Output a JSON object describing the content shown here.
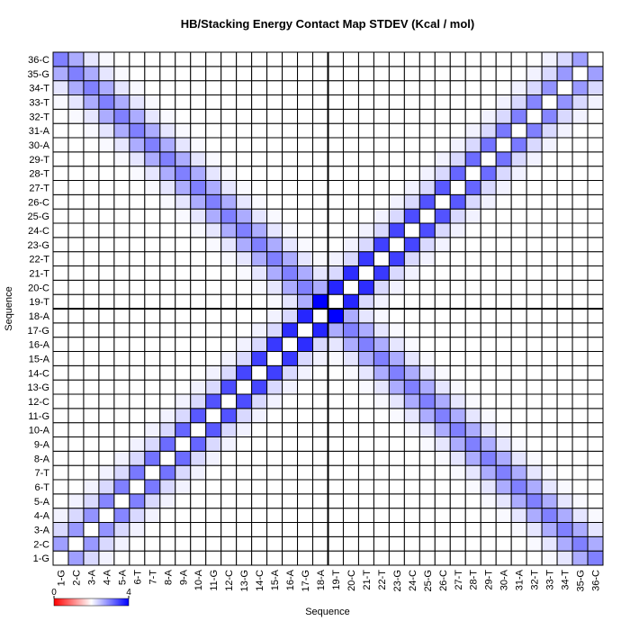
{
  "chart_data": {
    "type": "heatmap",
    "title": "HB/Stacking Energy Contact Map STDEV (Kcal / mol)",
    "xlabel": "Sequence",
    "ylabel": "Sequence",
    "labels": [
      "1-G",
      "2-C",
      "3-A",
      "4-A",
      "5-A",
      "6-T",
      "7-T",
      "8-A",
      "9-A",
      "10-A",
      "11-G",
      "12-C",
      "13-G",
      "14-C",
      "15-A",
      "16-A",
      "17-G",
      "18-A",
      "19-T",
      "20-C",
      "21-T",
      "22-T",
      "23-G",
      "24-C",
      "25-G",
      "26-C",
      "27-T",
      "28-T",
      "29-T",
      "30-A",
      "31-A",
      "32-T",
      "33-T",
      "34-T",
      "35-G",
      "36-C"
    ],
    "zlim": [
      0,
      4
    ],
    "zticks": [
      0,
      4
    ],
    "low_color": "#ffffff",
    "high_color": "#0000ff",
    "colorbar_colors": [
      "#ff0000",
      "#ffffff",
      "#0000ff"
    ],
    "values": [
      [
        0,
        1.5,
        0.6,
        0.2,
        0,
        0,
        0,
        0,
        0,
        0,
        0,
        0,
        0,
        0,
        0,
        0,
        0,
        0,
        0,
        0,
        0,
        0,
        0,
        0,
        0,
        0,
        0,
        0,
        0,
        0,
        0,
        0,
        0.1,
        0.4,
        1.3,
        2
      ],
      [
        1.5,
        0,
        1.6,
        0.6,
        0.2,
        0,
        0,
        0,
        0,
        0,
        0,
        0,
        0,
        0,
        0,
        0,
        0,
        0,
        0,
        0,
        0,
        0,
        0,
        0,
        0,
        0,
        0,
        0,
        0,
        0,
        0,
        0.1,
        0.4,
        1.3,
        2,
        1.3
      ],
      [
        0.6,
        1.6,
        0,
        1.7,
        0.6,
        0.2,
        0,
        0,
        0,
        0,
        0,
        0,
        0,
        0,
        0,
        0,
        0,
        0,
        0,
        0,
        0,
        0,
        0,
        0,
        0,
        0,
        0,
        0,
        0,
        0,
        0.1,
        0.4,
        1.3,
        2,
        1.3,
        0.4
      ],
      [
        0.2,
        0.6,
        1.7,
        0,
        1.9,
        0.6,
        0.2,
        0,
        0,
        0,
        0,
        0,
        0,
        0,
        0,
        0,
        0,
        0,
        0,
        0,
        0,
        0,
        0,
        0,
        0,
        0,
        0,
        0,
        0,
        0.1,
        0.4,
        1.3,
        2,
        1.3,
        0.4,
        0.1
      ],
      [
        0,
        0.2,
        0.6,
        1.9,
        0,
        2,
        0.6,
        0.2,
        0,
        0,
        0,
        0,
        0,
        0,
        0,
        0,
        0,
        0,
        0,
        0,
        0,
        0,
        0,
        0,
        0,
        0,
        0,
        0,
        0.1,
        0.4,
        1.3,
        2,
        1.3,
        0.4,
        0.1,
        0
      ],
      [
        0,
        0,
        0.2,
        0.6,
        2,
        0,
        2.1,
        0.6,
        0.2,
        0,
        0,
        0,
        0,
        0,
        0,
        0,
        0,
        0,
        0,
        0,
        0,
        0,
        0,
        0,
        0,
        0,
        0,
        0.1,
        0.4,
        1.3,
        2,
        1.3,
        0.4,
        0.1,
        0,
        0
      ],
      [
        0,
        0,
        0,
        0.2,
        0.6,
        2.1,
        0,
        2.2,
        0.6,
        0.2,
        0,
        0,
        0,
        0,
        0,
        0,
        0,
        0,
        0,
        0,
        0,
        0,
        0,
        0,
        0,
        0,
        0.1,
        0.4,
        1.3,
        2,
        1.3,
        0.4,
        0.1,
        0,
        0,
        0
      ],
      [
        0,
        0,
        0,
        0,
        0.2,
        0.6,
        2.2,
        0,
        2.3,
        0.6,
        0.2,
        0,
        0,
        0,
        0,
        0,
        0,
        0,
        0,
        0,
        0,
        0,
        0,
        0,
        0,
        0.1,
        0.4,
        1.3,
        2,
        1.3,
        0.4,
        0.1,
        0,
        0,
        0,
        0
      ],
      [
        0,
        0,
        0,
        0,
        0,
        0.2,
        0.6,
        2.3,
        0,
        2.4,
        0.6,
        0.2,
        0,
        0,
        0,
        0,
        0,
        0,
        0,
        0,
        0,
        0,
        0,
        0,
        0.1,
        0.4,
        1.3,
        2,
        1.3,
        0.4,
        0.1,
        0,
        0,
        0,
        0,
        0
      ],
      [
        0,
        0,
        0,
        0,
        0,
        0,
        0.2,
        0.6,
        2.4,
        0,
        2.6,
        0.6,
        0.2,
        0,
        0,
        0,
        0,
        0,
        0,
        0,
        0,
        0,
        0,
        0.1,
        0.4,
        1.3,
        2,
        1.3,
        0.4,
        0.1,
        0,
        0,
        0,
        0,
        0,
        0
      ],
      [
        0,
        0,
        0,
        0,
        0,
        0,
        0,
        0.2,
        0.6,
        2.6,
        0,
        2.7,
        0.6,
        0.2,
        0,
        0,
        0,
        0,
        0,
        0,
        0,
        0,
        0.1,
        0.4,
        1.3,
        2,
        1.3,
        0.4,
        0.1,
        0,
        0,
        0,
        0,
        0,
        0,
        0
      ],
      [
        0,
        0,
        0,
        0,
        0,
        0,
        0,
        0,
        0.2,
        0.6,
        2.7,
        0,
        2.8,
        0.6,
        0.2,
        0,
        0,
        0,
        0,
        0,
        0,
        0.1,
        0.4,
        1.3,
        2,
        1.3,
        0.4,
        0.1,
        0,
        0,
        0,
        0,
        0,
        0,
        0,
        0
      ],
      [
        0,
        0,
        0,
        0,
        0,
        0,
        0,
        0,
        0,
        0.2,
        0.6,
        2.8,
        0,
        2.9,
        0.6,
        0.2,
        0,
        0,
        0,
        0,
        0.1,
        0.4,
        1.3,
        2,
        1.3,
        0.4,
        0.1,
        0,
        0,
        0,
        0,
        0,
        0,
        0,
        0,
        0
      ],
      [
        0,
        0,
        0,
        0,
        0,
        0,
        0,
        0,
        0,
        0,
        0.2,
        0.6,
        2.9,
        0,
        3,
        0.6,
        0.2,
        0,
        0,
        0.1,
        0.4,
        1.3,
        2,
        1.3,
        0.4,
        0.1,
        0,
        0,
        0,
        0,
        0,
        0,
        0,
        0,
        0,
        0
      ],
      [
        0,
        0,
        0,
        0,
        0,
        0,
        0,
        0,
        0,
        0,
        0,
        0.2,
        0.6,
        3,
        0,
        3.1,
        0.6,
        0.2,
        0.1,
        0.4,
        1.3,
        2,
        1.3,
        0.4,
        0.1,
        0,
        0,
        0,
        0,
        0,
        0,
        0,
        0,
        0,
        0,
        0
      ],
      [
        0,
        0,
        0,
        0,
        0,
        0,
        0,
        0,
        0,
        0,
        0,
        0,
        0.2,
        0.6,
        3.1,
        0,
        3.3,
        0.6,
        0.4,
        1.3,
        2,
        1.3,
        0.4,
        0.1,
        0,
        0,
        0,
        0,
        0,
        0,
        0,
        0,
        0,
        0,
        0,
        0
      ],
      [
        0,
        0,
        0,
        0,
        0,
        0,
        0,
        0,
        0,
        0,
        0,
        0,
        0,
        0.2,
        0.6,
        3.3,
        0,
        3.4,
        1.3,
        2,
        1.3,
        0.4,
        0.1,
        0,
        0,
        0,
        0,
        0,
        0,
        0,
        0,
        0,
        0,
        0,
        0,
        0
      ],
      [
        0,
        0,
        0,
        0,
        0,
        0,
        0,
        0,
        0,
        0,
        0,
        0,
        0,
        0,
        0.2,
        0.6,
        3.4,
        0,
        4,
        1.3,
        0.4,
        0.1,
        0,
        0,
        0,
        0,
        0,
        0,
        0,
        0,
        0,
        0,
        0,
        0,
        0,
        0
      ],
      [
        0,
        0,
        0,
        0,
        0,
        0,
        0,
        0,
        0,
        0,
        0,
        0,
        0,
        0,
        0.1,
        0.4,
        1.3,
        4,
        0,
        3.4,
        0.6,
        0.2,
        0,
        0,
        0,
        0,
        0,
        0,
        0,
        0,
        0,
        0,
        0,
        0,
        0,
        0
      ],
      [
        0,
        0,
        0,
        0,
        0,
        0,
        0,
        0,
        0,
        0,
        0,
        0,
        0,
        0.1,
        0.4,
        1.3,
        2,
        1.3,
        3.4,
        0,
        3.3,
        0.6,
        0.2,
        0,
        0,
        0,
        0,
        0,
        0,
        0,
        0,
        0,
        0,
        0,
        0,
        0
      ],
      [
        0,
        0,
        0,
        0,
        0,
        0,
        0,
        0,
        0,
        0,
        0,
        0,
        0.1,
        0.4,
        1.3,
        2,
        1.3,
        0.4,
        0.6,
        3.3,
        0,
        3.1,
        0.6,
        0.2,
        0,
        0,
        0,
        0,
        0,
        0,
        0,
        0,
        0,
        0,
        0,
        0
      ],
      [
        0,
        0,
        0,
        0,
        0,
        0,
        0,
        0,
        0,
        0,
        0,
        0.1,
        0.4,
        1.3,
        2,
        1.3,
        0.4,
        0.1,
        0.2,
        0.6,
        3.1,
        0,
        3,
        0.6,
        0.2,
        0,
        0,
        0,
        0,
        0,
        0,
        0,
        0,
        0,
        0,
        0
      ],
      [
        0,
        0,
        0,
        0,
        0,
        0,
        0,
        0,
        0,
        0,
        0.1,
        0.4,
        1.3,
        2,
        1.3,
        0.4,
        0.1,
        0,
        0,
        0.2,
        0.6,
        3,
        0,
        2.9,
        0.6,
        0.2,
        0,
        0,
        0,
        0,
        0,
        0,
        0,
        0,
        0,
        0
      ],
      [
        0,
        0,
        0,
        0,
        0,
        0,
        0,
        0,
        0,
        0.1,
        0.4,
        1.3,
        2,
        1.3,
        0.4,
        0.1,
        0,
        0,
        0,
        0,
        0.2,
        0.6,
        2.9,
        0,
        2.8,
        0.6,
        0.2,
        0,
        0,
        0,
        0,
        0,
        0,
        0,
        0,
        0
      ],
      [
        0,
        0,
        0,
        0,
        0,
        0,
        0,
        0,
        0.1,
        0.4,
        1.3,
        2,
        1.3,
        0.4,
        0.1,
        0,
        0,
        0,
        0,
        0,
        0,
        0.2,
        0.6,
        2.8,
        0,
        2.7,
        0.6,
        0.2,
        0,
        0,
        0,
        0,
        0,
        0,
        0,
        0
      ],
      [
        0,
        0,
        0,
        0,
        0,
        0,
        0,
        0.1,
        0.4,
        1.3,
        2,
        1.3,
        0.4,
        0.1,
        0,
        0,
        0,
        0,
        0,
        0,
        0,
        0,
        0.2,
        0.6,
        2.7,
        0,
        2.6,
        0.6,
        0.2,
        0,
        0,
        0,
        0,
        0,
        0,
        0
      ],
      [
        0,
        0,
        0,
        0,
        0,
        0,
        0.1,
        0.4,
        1.3,
        2,
        1.3,
        0.4,
        0.1,
        0,
        0,
        0,
        0,
        0,
        0,
        0,
        0,
        0,
        0,
        0.2,
        0.6,
        2.6,
        0,
        2.4,
        0.6,
        0.2,
        0,
        0,
        0,
        0,
        0,
        0
      ],
      [
        0,
        0,
        0,
        0,
        0,
        0.1,
        0.4,
        1.3,
        2,
        1.3,
        0.4,
        0.1,
        0,
        0,
        0,
        0,
        0,
        0,
        0,
        0,
        0,
        0,
        0,
        0,
        0.2,
        0.6,
        2.4,
        0,
        2.3,
        0.6,
        0.2,
        0,
        0,
        0,
        0,
        0
      ],
      [
        0,
        0,
        0,
        0,
        0.1,
        0.4,
        1.3,
        2,
        1.3,
        0.4,
        0.1,
        0,
        0,
        0,
        0,
        0,
        0,
        0,
        0,
        0,
        0,
        0,
        0,
        0,
        0,
        0.2,
        0.6,
        2.3,
        0,
        2.2,
        0.6,
        0.2,
        0,
        0,
        0,
        0
      ],
      [
        0,
        0,
        0,
        0.1,
        0.4,
        1.3,
        2,
        1.3,
        0.4,
        0.1,
        0,
        0,
        0,
        0,
        0,
        0,
        0,
        0,
        0,
        0,
        0,
        0,
        0,
        0,
        0,
        0,
        0.2,
        0.6,
        2.2,
        0,
        2.1,
        0.6,
        0.2,
        0,
        0,
        0
      ],
      [
        0,
        0,
        0.1,
        0.4,
        1.3,
        2,
        1.3,
        0.4,
        0.1,
        0,
        0,
        0,
        0,
        0,
        0,
        0,
        0,
        0,
        0,
        0,
        0,
        0,
        0,
        0,
        0,
        0,
        0,
        0.2,
        0.6,
        2.1,
        0,
        2,
        0.6,
        0.2,
        0,
        0
      ],
      [
        0,
        0.1,
        0.4,
        1.3,
        2,
        1.3,
        0.4,
        0.1,
        0,
        0,
        0,
        0,
        0,
        0,
        0,
        0,
        0,
        0,
        0,
        0,
        0,
        0,
        0,
        0,
        0,
        0,
        0,
        0,
        0.2,
        0.6,
        2,
        0,
        1.9,
        0.6,
        0.2,
        0
      ],
      [
        0.1,
        0.4,
        1.3,
        2,
        1.3,
        0.4,
        0.1,
        0,
        0,
        0,
        0,
        0,
        0,
        0,
        0,
        0,
        0,
        0,
        0,
        0,
        0,
        0,
        0,
        0,
        0,
        0,
        0,
        0,
        0,
        0.2,
        0.6,
        1.9,
        0,
        1.7,
        0.6,
        0.2
      ],
      [
        0.4,
        1.3,
        2,
        1.3,
        0.4,
        0.1,
        0,
        0,
        0,
        0,
        0,
        0,
        0,
        0,
        0,
        0,
        0,
        0,
        0,
        0,
        0,
        0,
        0,
        0,
        0,
        0,
        0,
        0,
        0,
        0,
        0.2,
        0.6,
        1.7,
        0,
        1.6,
        0.6
      ],
      [
        1.3,
        2,
        1.3,
        0.4,
        0.1,
        0,
        0,
        0,
        0,
        0,
        0,
        0,
        0,
        0,
        0,
        0,
        0,
        0,
        0,
        0,
        0,
        0,
        0,
        0,
        0,
        0,
        0,
        0,
        0,
        0,
        0,
        0.2,
        0.6,
        1.6,
        0,
        1.5
      ],
      [
        2,
        1.3,
        0.4,
        0.1,
        0,
        0,
        0,
        0,
        0,
        0,
        0,
        0,
        0,
        0,
        0,
        0,
        0,
        0,
        0,
        0,
        0,
        0,
        0,
        0,
        0,
        0,
        0,
        0,
        0,
        0,
        0,
        0,
        0.2,
        0.6,
        1.5,
        0
      ]
    ]
  }
}
